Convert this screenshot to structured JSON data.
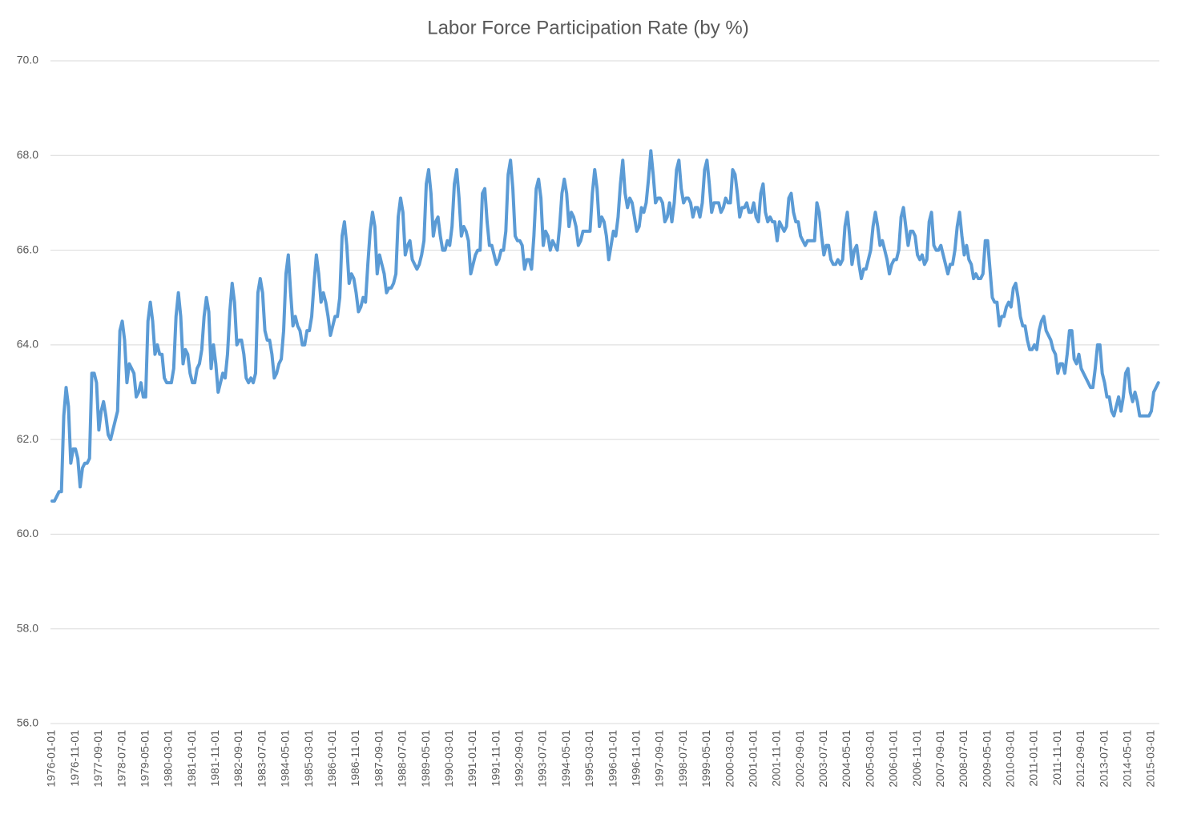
{
  "chart_data": {
    "type": "line",
    "title": "Labor Force Participation Rate (by %)",
    "categories": [
      "1976-01-01",
      null,
      null,
      null,
      null,
      null,
      null,
      null,
      null,
      null,
      "1976-11-01",
      null,
      null,
      null,
      null,
      null,
      null,
      null,
      null,
      null,
      "1977-09-01",
      null,
      null,
      null,
      null,
      null,
      null,
      null,
      null,
      null,
      "1978-07-01",
      null,
      null,
      null,
      null,
      null,
      null,
      null,
      null,
      null,
      "1979-05-01",
      null,
      null,
      null,
      null,
      null,
      null,
      null,
      null,
      null,
      "1980-03-01",
      null,
      null,
      null,
      null,
      null,
      null,
      null,
      null,
      null,
      "1981-01-01",
      null,
      null,
      null,
      null,
      null,
      null,
      null,
      null,
      null,
      "1981-11-01",
      null,
      null,
      null,
      null,
      null,
      null,
      null,
      null,
      null,
      "1982-09-01",
      null,
      null,
      null,
      null,
      null,
      null,
      null,
      null,
      null,
      "1983-07-01",
      null,
      null,
      null,
      null,
      null,
      null,
      null,
      null,
      null,
      "1984-05-01",
      null,
      null,
      null,
      null,
      null,
      null,
      null,
      null,
      null,
      "1985-03-01",
      null,
      null,
      null,
      null,
      null,
      null,
      null,
      null,
      null,
      "1986-01-01",
      null,
      null,
      null,
      null,
      null,
      null,
      null,
      null,
      null,
      "1986-11-01",
      null,
      null,
      null,
      null,
      null,
      null,
      null,
      null,
      null,
      "1987-09-01",
      null,
      null,
      null,
      null,
      null,
      null,
      null,
      null,
      null,
      "1988-07-01",
      null,
      null,
      null,
      null,
      null,
      null,
      null,
      null,
      null,
      "1989-05-01",
      null,
      null,
      null,
      null,
      null,
      null,
      null,
      null,
      null,
      "1990-03-01",
      null,
      null,
      null,
      null,
      null,
      null,
      null,
      null,
      null,
      "1991-01-01",
      null,
      null,
      null,
      null,
      null,
      null,
      null,
      null,
      null,
      "1991-11-01",
      null,
      null,
      null,
      null,
      null,
      null,
      null,
      null,
      null,
      "1992-09-01",
      null,
      null,
      null,
      null,
      null,
      null,
      null,
      null,
      null,
      "1993-07-01",
      null,
      null,
      null,
      null,
      null,
      null,
      null,
      null,
      null,
      "1994-05-01",
      null,
      null,
      null,
      null,
      null,
      null,
      null,
      null,
      null,
      "1995-03-01",
      null,
      null,
      null,
      null,
      null,
      null,
      null,
      null,
      null,
      "1996-01-01",
      null,
      null,
      null,
      null,
      null,
      null,
      null,
      null,
      null,
      "1996-11-01",
      null,
      null,
      null,
      null,
      null,
      null,
      null,
      null,
      null,
      "1997-09-01",
      null,
      null,
      null,
      null,
      null,
      null,
      null,
      null,
      null,
      "1998-07-01",
      null,
      null,
      null,
      null,
      null,
      null,
      null,
      null,
      null,
      "1999-05-01",
      null,
      null,
      null,
      null,
      null,
      null,
      null,
      null,
      null,
      "2000-03-01",
      null,
      null,
      null,
      null,
      null,
      null,
      null,
      null,
      null,
      "2001-01-01",
      null,
      null,
      null,
      null,
      null,
      null,
      null,
      null,
      null,
      "2001-11-01",
      null,
      null,
      null,
      null,
      null,
      null,
      null,
      null,
      null,
      "2002-09-01",
      null,
      null,
      null,
      null,
      null,
      null,
      null,
      null,
      null,
      "2003-07-01",
      null,
      null,
      null,
      null,
      null,
      null,
      null,
      null,
      null,
      "2004-05-01",
      null,
      null,
      null,
      null,
      null,
      null,
      null,
      null,
      null,
      "2005-03-01",
      null,
      null,
      null,
      null,
      null,
      null,
      null,
      null,
      null,
      "2006-01-01",
      null,
      null,
      null,
      null,
      null,
      null,
      null,
      null,
      null,
      "2006-11-01",
      null,
      null,
      null,
      null,
      null,
      null,
      null,
      null,
      null,
      "2007-09-01",
      null,
      null,
      null,
      null,
      null,
      null,
      null,
      null,
      null,
      "2008-07-01",
      null,
      null,
      null,
      null,
      null,
      null,
      null,
      null,
      null,
      "2009-05-01",
      null,
      null,
      null,
      null,
      null,
      null,
      null,
      null,
      null,
      "2010-03-01",
      null,
      null,
      null,
      null,
      null,
      null,
      null,
      null,
      null,
      "2011-01-01",
      null,
      null,
      null,
      null,
      null,
      null,
      null,
      null,
      null,
      "2011-11-01",
      null,
      null,
      null,
      null,
      null,
      null,
      null,
      null,
      null,
      "2012-09-01",
      null,
      null,
      null,
      null,
      null,
      null,
      null,
      null,
      null,
      "2013-07-01",
      null,
      null,
      null,
      null,
      null,
      null,
      null,
      null,
      null,
      "2014-05-01",
      null,
      null,
      null,
      null,
      null,
      null,
      null,
      null,
      null,
      "2015-03-01",
      null,
      null,
      null
    ],
    "series": [
      {
        "color": "#5b9bd5",
        "values": [
          60.7,
          60.7,
          60.8,
          60.9,
          60.9,
          62.5,
          63.1,
          62.7,
          61.5,
          61.8,
          61.8,
          61.6,
          61.0,
          61.4,
          61.5,
          61.5,
          61.6,
          63.4,
          63.4,
          63.2,
          62.2,
          62.6,
          62.8,
          62.5,
          62.1,
          62.0,
          62.2,
          62.4,
          62.6,
          64.3,
          64.5,
          64.1,
          63.2,
          63.6,
          63.5,
          63.4,
          62.9,
          63.0,
          63.2,
          62.9,
          62.9,
          64.5,
          64.9,
          64.5,
          63.8,
          64.0,
          63.8,
          63.8,
          63.3,
          63.2,
          63.2,
          63.2,
          63.5,
          64.6,
          65.1,
          64.6,
          63.6,
          63.9,
          63.8,
          63.4,
          63.2,
          63.2,
          63.5,
          63.6,
          63.9,
          64.6,
          65.0,
          64.7,
          63.5,
          64.0,
          63.6,
          63.0,
          63.2,
          63.4,
          63.3,
          63.8,
          64.7,
          65.3,
          64.9,
          64.0,
          64.1,
          64.1,
          63.8,
          63.3,
          63.2,
          63.3,
          63.2,
          63.4,
          65.1,
          65.4,
          65.1,
          64.3,
          64.1,
          64.1,
          63.8,
          63.3,
          63.4,
          63.6,
          63.7,
          64.3,
          65.5,
          65.9,
          65.1,
          64.4,
          64.6,
          64.4,
          64.3,
          64.0,
          64.0,
          64.3,
          64.3,
          64.6,
          65.3,
          65.9,
          65.5,
          64.9,
          65.1,
          64.9,
          64.6,
          64.2,
          64.4,
          64.6,
          64.6,
          65.0,
          66.3,
          66.6,
          66.1,
          65.3,
          65.5,
          65.4,
          65.1,
          64.7,
          64.8,
          65.0,
          64.9,
          65.7,
          66.4,
          66.8,
          66.5,
          65.5,
          65.9,
          65.7,
          65.5,
          65.1,
          65.2,
          65.2,
          65.3,
          65.5,
          66.7,
          67.1,
          66.8,
          65.9,
          66.1,
          66.2,
          65.8,
          65.7,
          65.6,
          65.7,
          65.9,
          66.2,
          67.4,
          67.7,
          67.2,
          66.3,
          66.6,
          66.7,
          66.3,
          66.0,
          66.0,
          66.2,
          66.1,
          66.5,
          67.4,
          67.7,
          67.1,
          66.3,
          66.5,
          66.4,
          66.2,
          65.5,
          65.7,
          65.9,
          66.0,
          66.0,
          67.2,
          67.3,
          66.6,
          66.1,
          66.1,
          65.9,
          65.7,
          65.8,
          66.0,
          66.0,
          66.4,
          67.6,
          67.9,
          67.3,
          66.3,
          66.2,
          66.2,
          66.1,
          65.6,
          65.8,
          65.8,
          65.6,
          66.3,
          67.3,
          67.5,
          67.1,
          66.1,
          66.4,
          66.3,
          66.0,
          66.2,
          66.1,
          66.0,
          66.5,
          67.2,
          67.5,
          67.2,
          66.5,
          66.8,
          66.7,
          66.5,
          66.1,
          66.2,
          66.4,
          66.4,
          66.4,
          66.4,
          67.2,
          67.7,
          67.3,
          66.5,
          66.7,
          66.6,
          66.3,
          65.8,
          66.1,
          66.4,
          66.3,
          66.7,
          67.4,
          67.9,
          67.2,
          66.9,
          67.1,
          67.0,
          66.7,
          66.4,
          66.5,
          66.9,
          66.8,
          67.0,
          67.5,
          68.1,
          67.6,
          67.0,
          67.1,
          67.1,
          67.0,
          66.6,
          66.7,
          67.0,
          66.6,
          67.0,
          67.7,
          67.9,
          67.3,
          67.0,
          67.1,
          67.1,
          67.0,
          66.7,
          66.9,
          66.9,
          66.7,
          67.0,
          67.7,
          67.9,
          67.4,
          66.8,
          67.0,
          67.0,
          67.0,
          66.8,
          66.9,
          67.1,
          67.0,
          67.0,
          67.7,
          67.6,
          67.2,
          66.7,
          66.9,
          66.9,
          67.0,
          66.8,
          66.8,
          67.0,
          66.7,
          66.6,
          67.2,
          67.4,
          66.8,
          66.6,
          66.7,
          66.6,
          66.6,
          66.2,
          66.6,
          66.5,
          66.4,
          66.5,
          67.1,
          67.2,
          66.8,
          66.6,
          66.6,
          66.3,
          66.2,
          66.1,
          66.2,
          66.2,
          66.2,
          66.2,
          67.0,
          66.8,
          66.3,
          65.9,
          66.1,
          66.1,
          65.8,
          65.7,
          65.7,
          65.8,
          65.7,
          65.8,
          66.5,
          66.8,
          66.3,
          65.7,
          66.0,
          66.1,
          65.7,
          65.4,
          65.6,
          65.6,
          65.8,
          66.0,
          66.5,
          66.8,
          66.5,
          66.1,
          66.2,
          66.0,
          65.8,
          65.5,
          65.7,
          65.8,
          65.8,
          66.0,
          66.7,
          66.9,
          66.5,
          66.1,
          66.4,
          66.4,
          66.3,
          65.9,
          65.8,
          65.9,
          65.7,
          65.8,
          66.6,
          66.8,
          66.1,
          66.0,
          66.0,
          66.1,
          65.9,
          65.7,
          65.5,
          65.7,
          65.7,
          66.0,
          66.5,
          66.8,
          66.3,
          65.9,
          66.1,
          65.8,
          65.7,
          65.4,
          65.5,
          65.4,
          65.4,
          65.5,
          66.2,
          66.2,
          65.6,
          65.0,
          64.9,
          64.9,
          64.4,
          64.6,
          64.6,
          64.8,
          64.9,
          64.8,
          65.2,
          65.3,
          65.0,
          64.6,
          64.4,
          64.4,
          64.1,
          63.9,
          63.9,
          64.0,
          63.9,
          64.3,
          64.5,
          64.6,
          64.3,
          64.2,
          64.1,
          63.9,
          63.8,
          63.4,
          63.6,
          63.6,
          63.4,
          63.8,
          64.3,
          64.3,
          63.7,
          63.6,
          63.8,
          63.5,
          63.4,
          63.3,
          63.2,
          63.1,
          63.1,
          63.5,
          64.0,
          64.0,
          63.4,
          63.2,
          62.9,
          62.9,
          62.6,
          62.5,
          62.7,
          62.9,
          62.6,
          62.9,
          63.4,
          63.5,
          63.0,
          62.8,
          63.0,
          62.8,
          62.5,
          62.5,
          62.5,
          62.5,
          62.5,
          62.6,
          63.0,
          63.1,
          63.2
        ]
      }
    ],
    "ylim": [
      56,
      70
    ],
    "yticks": [
      {
        "value": 56,
        "label": "56.0"
      },
      {
        "value": 58,
        "label": "58.0"
      },
      {
        "value": 60,
        "label": "60.0"
      },
      {
        "value": 62,
        "label": "62.0"
      },
      {
        "value": 64,
        "label": "64.0"
      },
      {
        "value": 66,
        "label": "66.0"
      },
      {
        "value": 68,
        "label": "68.0"
      },
      {
        "value": 70,
        "label": "70.0"
      }
    ],
    "grid": true
  }
}
